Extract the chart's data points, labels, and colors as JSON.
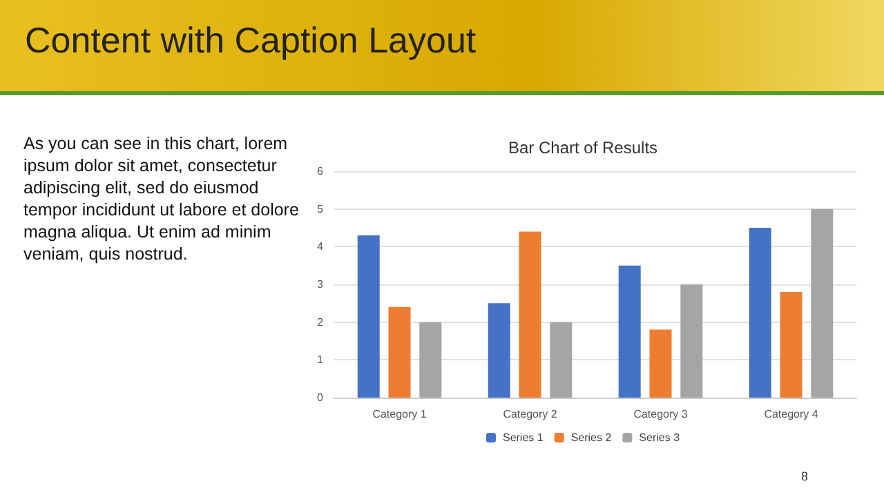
{
  "chart_data": {
    "type": "bar",
    "title": "Bar Chart of Results",
    "categories": [
      "Category 1",
      "Category 2",
      "Category 3",
      "Category 4"
    ],
    "series": [
      {
        "name": "Series 1",
        "color": "#4472c4",
        "values": [
          4.3,
          2.5,
          3.5,
          4.5
        ]
      },
      {
        "name": "Series 2",
        "color": "#ed7d31",
        "values": [
          2.4,
          4.4,
          1.8,
          2.8
        ]
      },
      {
        "name": "Series 3",
        "color": "#a5a5a5",
        "values": [
          2,
          2,
          3,
          5
        ]
      }
    ],
    "ylim": [
      0,
      6
    ],
    "yticks": [
      0,
      1,
      2,
      3,
      4,
      5,
      6
    ],
    "grid": "y",
    "legend": "bottom",
    "annotations": [
      "Content with Caption Layout",
      "As you can see in this chart, lorem ipsum dolor sit amet, consectetur adipiscing elit, sed do eiusmod tempor incididunt ut labore et dolore magna aliqua. Ut enim ad minim veniam, quis nostrud.",
      "8"
    ]
  }
}
